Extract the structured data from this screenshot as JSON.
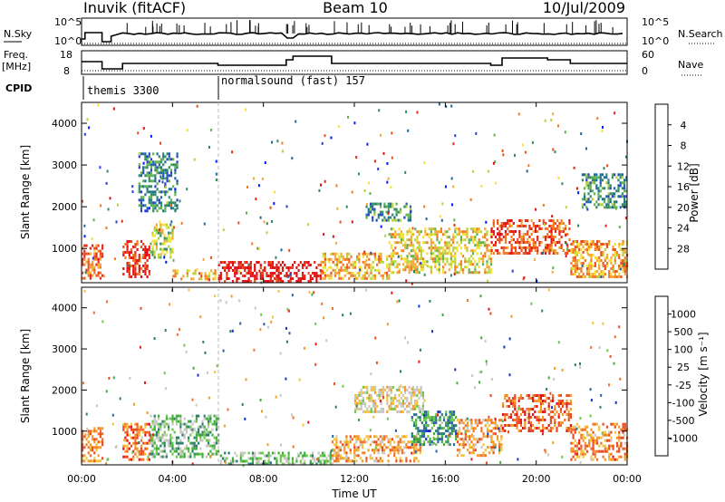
{
  "header": {
    "title": "Inuvik (fitACF)",
    "beam": "Beam 10",
    "date": "10/Jul/2009"
  },
  "nsky": {
    "label": "N.Sky",
    "ticks": [
      "10^5",
      "10^0"
    ],
    "right_label": "N.Search",
    "right_ticks": [
      "10^5",
      "10^0"
    ]
  },
  "freq": {
    "label_line1": "Freq.",
    "label_line2": "[MHz]",
    "ticks": [
      "18",
      "8"
    ],
    "right_label": "Nave",
    "right_ticks": [
      "60",
      "0"
    ]
  },
  "cpid": {
    "label": "CPID",
    "modes": [
      {
        "label": "themis 3300",
        "start_hour": 0
      },
      {
        "label": "normalsound (fast) 157",
        "start_hour": 6
      }
    ]
  },
  "time_axis": {
    "xlabel": "Time UT",
    "ticks": [
      "00:00",
      "04:00",
      "08:00",
      "12:00",
      "16:00",
      "20:00",
      "00:00"
    ]
  },
  "chart_data": [
    {
      "type": "heatmap",
      "name": "power",
      "xlabel": "Time UT",
      "ylabel": "Slant Range [km]",
      "x_range_hours": [
        0,
        24
      ],
      "ylim": [
        180,
        4500
      ],
      "yticks": [
        "1000",
        "2000",
        "3000",
        "4000"
      ],
      "colorbar": {
        "label": "Power [dB]",
        "ticks": [
          "4",
          "8",
          "12",
          "16",
          "20",
          "24",
          "28"
        ],
        "colors": [
          "#0019ff",
          "#2a3fd0",
          "#1c6a9c",
          "#2f8b61",
          "#5fb24e",
          "#b6d33a",
          "#f3e13a",
          "#f2a93a",
          "#f37a22",
          "#ee4d1c",
          "#e6271a",
          "#e30f13"
        ]
      },
      "regions": [
        {
          "t0": 0.0,
          "t1": 0.9,
          "r0": 300,
          "r1": 1100,
          "v": 0.75
        },
        {
          "t0": 1.8,
          "t1": 3.0,
          "r0": 300,
          "r1": 1200,
          "v": 0.85
        },
        {
          "t0": 3.0,
          "t1": 4.0,
          "r0": 800,
          "r1": 1600,
          "v": 0.45
        },
        {
          "t0": 4.0,
          "t1": 6.0,
          "r0": 250,
          "r1": 500,
          "v": 0.6
        },
        {
          "t0": 6.0,
          "t1": 10.5,
          "r0": 220,
          "r1": 700,
          "v": 0.95
        },
        {
          "t0": 10.5,
          "t1": 13.5,
          "r0": 300,
          "r1": 900,
          "v": 0.6
        },
        {
          "t0": 13.5,
          "t1": 18.0,
          "r0": 400,
          "r1": 1500,
          "v": 0.55
        },
        {
          "t0": 18.0,
          "t1": 21.5,
          "r0": 900,
          "r1": 1700,
          "v": 0.8
        },
        {
          "t0": 21.5,
          "t1": 24.0,
          "r0": 300,
          "r1": 1200,
          "v": 0.65
        },
        {
          "t0": 12.5,
          "t1": 14.5,
          "r0": 1700,
          "r1": 2100,
          "v": 0.3
        },
        {
          "t0": 2.5,
          "t1": 4.2,
          "r0": 1900,
          "r1": 3300,
          "v": 0.25
        },
        {
          "t0": 22.0,
          "t1": 24.0,
          "r0": 2000,
          "r1": 2800,
          "v": 0.3
        }
      ]
    },
    {
      "type": "heatmap",
      "name": "velocity",
      "xlabel": "Time UT",
      "ylabel": "Slant Range [km]",
      "x_range_hours": [
        0,
        24
      ],
      "ylim": [
        180,
        4500
      ],
      "yticks": [
        "1000",
        "2000",
        "3000",
        "4000"
      ],
      "colorbar": {
        "label": "Velocity [m s⁻¹]",
        "ticks": [
          "1000",
          "500",
          "100",
          "25",
          "-25",
          "-100",
          "-500",
          "-1000"
        ],
        "colors": [
          "#1a2fc8",
          "#2a5fb0",
          "#2b7f6f",
          "#3fae3c",
          "#6cc84a",
          "#c7c7c2",
          "#c7c7c2",
          "#f3c43a",
          "#f59a24",
          "#f2702b",
          "#ec4a1f",
          "#e5161a"
        ]
      },
      "regions": [
        {
          "t0": 0.0,
          "t1": 0.9,
          "r0": 300,
          "r1": 1100,
          "v": 0.75
        },
        {
          "t0": 1.8,
          "t1": 3.0,
          "r0": 300,
          "r1": 1200,
          "v": 0.8
        },
        {
          "t0": 3.0,
          "t1": 6.0,
          "r0": 400,
          "r1": 1400,
          "v": 0.35
        },
        {
          "t0": 6.0,
          "t1": 11.0,
          "r0": 220,
          "r1": 500,
          "v": 0.38
        },
        {
          "t0": 11.0,
          "t1": 15.0,
          "r0": 300,
          "r1": 900,
          "v": 0.7
        },
        {
          "t0": 14.5,
          "t1": 16.5,
          "r0": 700,
          "r1": 1500,
          "v": 0.25
        },
        {
          "t0": 16.5,
          "t1": 18.5,
          "r0": 400,
          "r1": 1300,
          "v": 0.7
        },
        {
          "t0": 18.5,
          "t1": 21.5,
          "r0": 1000,
          "r1": 1900,
          "v": 0.85
        },
        {
          "t0": 21.5,
          "t1": 24.0,
          "r0": 300,
          "r1": 1200,
          "v": 0.75
        },
        {
          "t0": 12.0,
          "t1": 15.0,
          "r0": 1500,
          "r1": 2100,
          "v": 0.55
        }
      ]
    }
  ]
}
